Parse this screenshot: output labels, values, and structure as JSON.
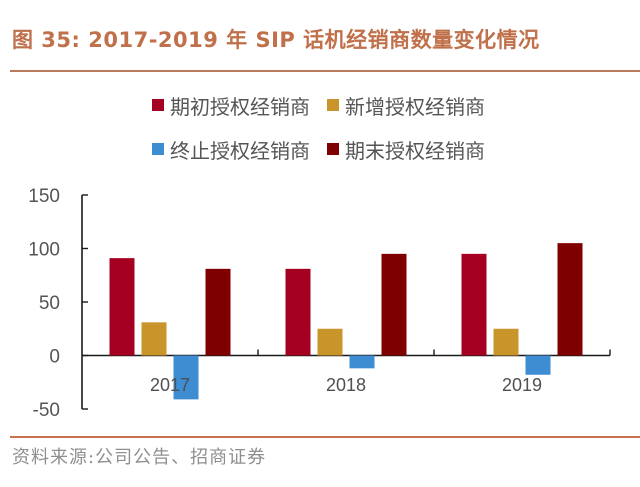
{
  "title": "图 35:  2017-2019 年 SIP 话机经销商数量变化情况",
  "source": "资料来源:公司公告、招商证券",
  "chart_data": {
    "type": "bar",
    "title": "图 35:  2017-2019 年 SIP 话机经销商数量变化情况",
    "xlabel": "",
    "ylabel": "",
    "categories": [
      "2017",
      "2018",
      "2019"
    ],
    "ylim": [
      -50,
      150
    ],
    "yticks": [
      150,
      100,
      50,
      0,
      -50
    ],
    "ytick_labels": [
      "150",
      "100",
      "50",
      "0",
      "-50"
    ],
    "grid": false,
    "legend_position": "top",
    "series": [
      {
        "name": "期初授权经销商",
        "color": "#A50021",
        "values": [
          91,
          81,
          95
        ]
      },
      {
        "name": "新增授权经销商",
        "color": "#C9952B",
        "values": [
          31,
          25,
          25
        ]
      },
      {
        "name": "终止授权经销商",
        "color": "#3E8DD3",
        "values": [
          -41,
          -12,
          -18
        ]
      },
      {
        "name": "期末授权经销商",
        "color": "#7F0000",
        "values": [
          81,
          95,
          105
        ]
      }
    ]
  }
}
